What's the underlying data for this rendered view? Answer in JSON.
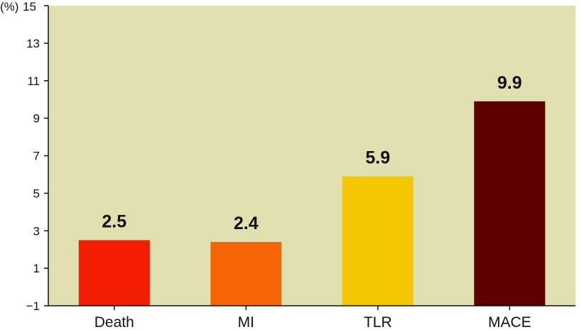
{
  "chart_data": {
    "type": "bar",
    "title": "",
    "xlabel": "",
    "ylabel": "(%)",
    "categories": [
      "Death",
      "MI",
      "TLR",
      "MACE"
    ],
    "values": [
      2.5,
      2.4,
      5.9,
      9.9
    ],
    "value_labels": [
      "2.5",
      "2.4",
      "5.9",
      "9.9"
    ],
    "bar_colors": [
      "#f41c02",
      "#f46505",
      "#f5c602",
      "#5c0000"
    ],
    "plot_background": "#e0e0b0",
    "ylim": [
      -1,
      15
    ],
    "yticks": [
      -1,
      1,
      3,
      5,
      7,
      9,
      11,
      13,
      15
    ],
    "ytick_labels": [
      "−1",
      "1",
      "3",
      "5",
      "7",
      "9",
      "11",
      "13",
      "15"
    ],
    "grid": false,
    "legend": "none"
  }
}
